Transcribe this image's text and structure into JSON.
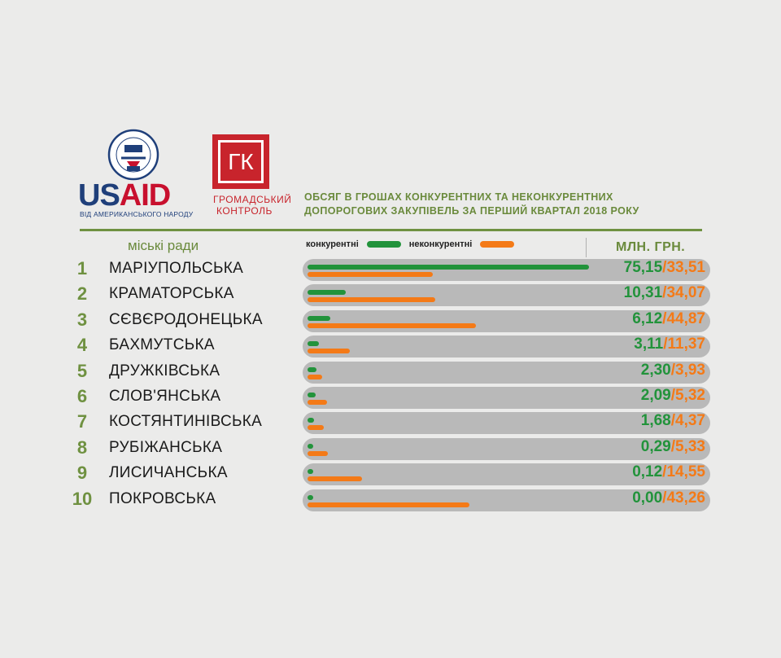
{
  "logos": {
    "usaid_us": "US",
    "usaid_aid": "AID",
    "usaid_tagline": "ВІД АМЕРИКАНСЬКОГО НАРОДУ",
    "seal_icon": "usaid-seal-icon",
    "gk_mark": "ГК",
    "gk_name_line1": "ГРОМАДСЬКИЙ",
    "gk_name_line2": "КОНТРОЛЬ"
  },
  "colors": {
    "competitive": "#22933b",
    "noncompetitive": "#f47a17",
    "accent_green": "#6f9141",
    "track": "#b9b9b9"
  },
  "chart_data": {
    "type": "bar",
    "title_line1": "ОБСЯГ В ГРОШАХ КОНКУРЕНТНИХ ТА НЕКОНКУРЕНТНИХ",
    "title_line2": "ДОПОРОГОВИХ ЗАКУПІВЕЛЬ ЗА ПЕРШИЙ КВАРТАЛ 2018 РОКУ",
    "category_header": "міські ради",
    "unit": "МЛН. ГРН.",
    "legend_position": "top",
    "xlim": [
      0,
      75.15
    ],
    "separator": "/",
    "categories": [
      "МАРІУПОЛЬСЬКА",
      "КРАМАТОРСЬКА",
      "СЄВЄРОДОНЕЦЬКА",
      "БАХМУТСЬКА",
      "ДРУЖКІВСЬКА",
      "СЛОВ'ЯНСЬКА",
      "КОСТЯНТИНІВСЬКА",
      "РУБІЖАНСЬКА",
      "ЛИСИЧАНСЬКА",
      "ПОКРОВСЬКА"
    ],
    "ranks": [
      "1",
      "2",
      "3",
      "4",
      "5",
      "6",
      "7",
      "8",
      "9",
      "10"
    ],
    "series": [
      {
        "name": "конкурентні",
        "values": [
          75.15,
          10.31,
          6.12,
          3.11,
          2.3,
          2.09,
          1.68,
          0.29,
          0.12,
          0.0
        ],
        "labels": [
          "75,15",
          "10,31",
          "6,12",
          "3,11",
          "2,30",
          "2,09",
          "1,68",
          "0,29",
          "0,12",
          "0,00"
        ]
      },
      {
        "name": "неконкурентні",
        "values": [
          33.51,
          34.07,
          44.87,
          11.37,
          3.93,
          5.32,
          4.37,
          5.33,
          14.55,
          43.26
        ],
        "labels": [
          "33,51",
          "34,07",
          "44,87",
          "11,37",
          "3,93",
          "5,32",
          "4,37",
          "5,33",
          "14,55",
          "43,26"
        ]
      }
    ]
  }
}
